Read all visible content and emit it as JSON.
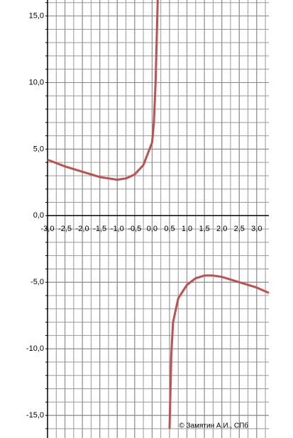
{
  "chart_data": {
    "type": "line",
    "x": [
      -3,
      -2.5,
      -2,
      -1.5,
      -1,
      -0.75,
      -0.5,
      -0.25,
      0,
      0.05,
      0.1,
      0.16,
      0.3,
      0.5,
      0.55,
      0.6,
      0.75,
      1,
      1.25,
      1.5,
      1.75,
      2,
      2.5,
      3,
      3.35
    ],
    "values": [
      4.2,
      3.7,
      3.3,
      2.9,
      2.7,
      2.8,
      3.1,
      3.8,
      5.5,
      7,
      10,
      16.2,
      null,
      -16,
      -10.5,
      -8,
      -6.2,
      -5.2,
      -4.7,
      -4.5,
      -4.5,
      -4.6,
      -5,
      -5.4,
      -5.8
    ],
    "color": "#c0504d",
    "xlim": [
      -3,
      3.35
    ],
    "ylim": [
      -16.7,
      16.2
    ],
    "xticks": [
      {
        "value": -3,
        "label": "-3,0"
      },
      {
        "value": -2.5,
        "label": "-2,5"
      },
      {
        "value": -2,
        "label": "-2,0"
      },
      {
        "value": -1.5,
        "label": "-1,5"
      },
      {
        "value": -1,
        "label": "-1,0"
      },
      {
        "value": -0.5,
        "label": "-0,5"
      },
      {
        "value": 0,
        "label": "0,0"
      },
      {
        "value": 0.5,
        "label": "0,5"
      },
      {
        "value": 1,
        "label": "1,0"
      },
      {
        "value": 1.5,
        "label": "1,5"
      },
      {
        "value": 2,
        "label": "2,0"
      },
      {
        "value": 2.5,
        "label": "2,5"
      },
      {
        "value": 3,
        "label": "3,0"
      }
    ],
    "yticks": [
      {
        "value": -15,
        "label": "-15,0"
      },
      {
        "value": -10,
        "label": "-10,0"
      },
      {
        "value": -5,
        "label": "-5,0"
      },
      {
        "value": 0,
        "label": "0,0"
      },
      {
        "value": 5,
        "label": "5,0"
      },
      {
        "value": 10,
        "label": "10,0"
      },
      {
        "value": 15,
        "label": "15,0"
      }
    ],
    "grid": true,
    "annotation": "© Замятин А.И., СПб"
  }
}
